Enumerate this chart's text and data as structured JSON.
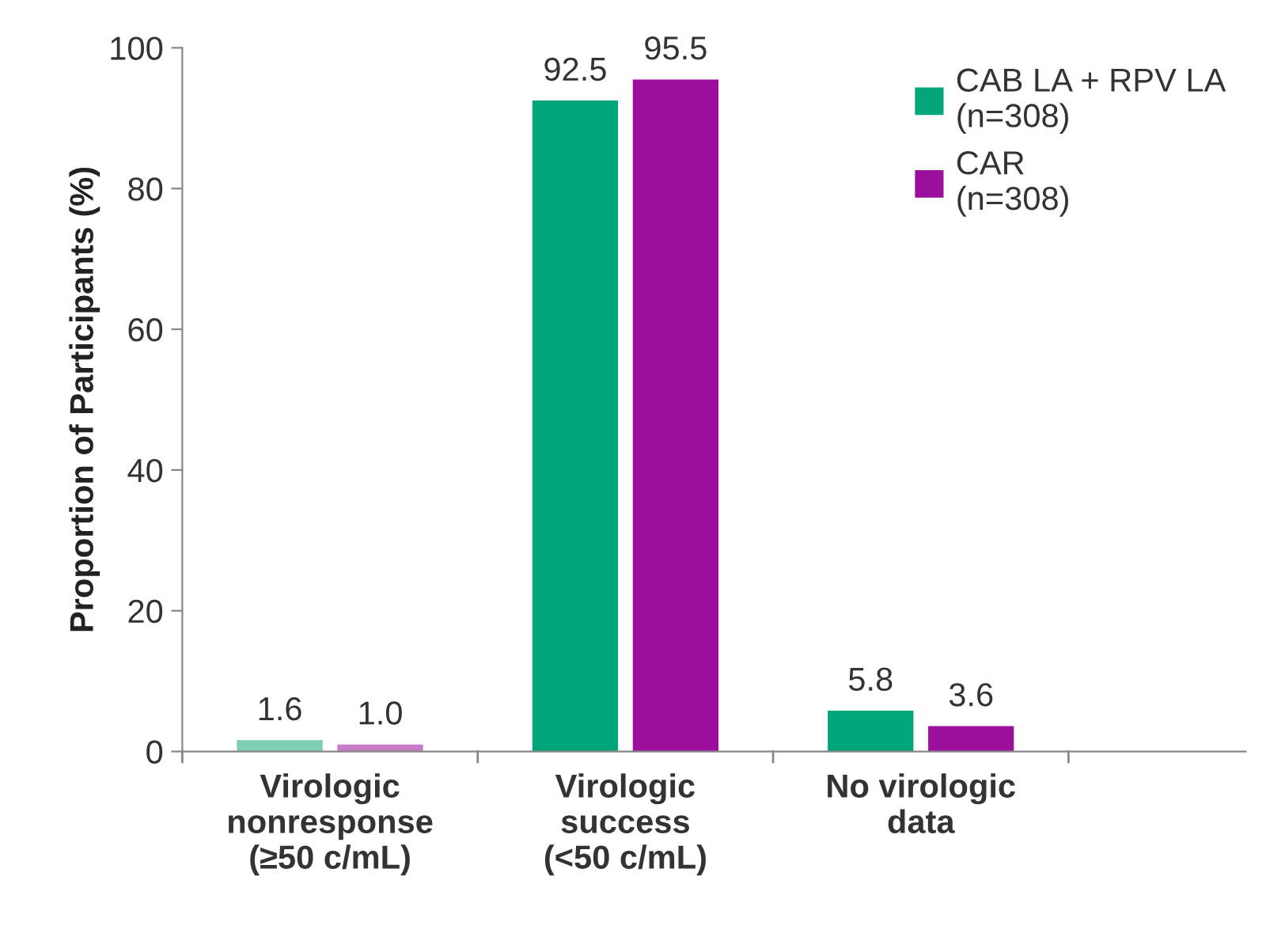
{
  "chart_data": {
    "type": "bar",
    "ylabel": "Proportion of Participants (%)",
    "categories": [
      "Virologic\nnonresponse\n(≥50 c/mL)",
      "Virologic\nsuccess\n(<50 c/mL)",
      "No virologic\ndata"
    ],
    "series": [
      {
        "name": "CAB LA + RPV LA\n(n=308)",
        "color": "#00a57a",
        "colors": [
          "#7fcdb3",
          "#00a57a",
          "#00a57a"
        ],
        "values": [
          1.6,
          92.5,
          5.8
        ],
        "value_labels": [
          "1.6",
          "92.5",
          "5.8"
        ]
      },
      {
        "name": "CAR\n(n=308)",
        "color": "#9c0f9c",
        "colors": [
          "#c87cc8",
          "#9c0f9c",
          "#9c0f9c"
        ],
        "values": [
          1.0,
          95.5,
          3.6
        ],
        "value_labels": [
          "1.0",
          "95.5",
          "3.6"
        ]
      }
    ],
    "ylim": [
      0,
      100
    ],
    "yticks": [
      0,
      20,
      40,
      60,
      80,
      100
    ],
    "legend": "top right",
    "grid": false
  }
}
